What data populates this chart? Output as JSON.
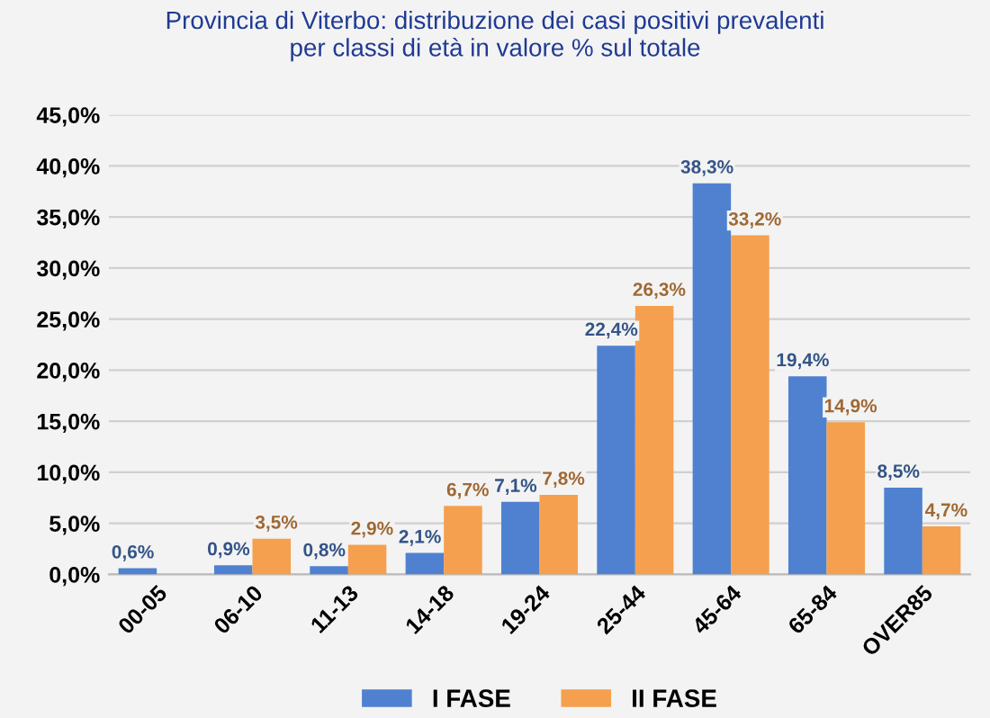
{
  "chart_data": {
    "type": "bar",
    "title": "Provincia di Viterbo: distribuzione dei casi positivi prevalenti\nper classi di età in valore % sul totale",
    "categories": [
      "00-05",
      "06-10",
      "11-13",
      "14-18",
      "19-24",
      "25-44",
      "45-64",
      "65-84",
      "OVER85"
    ],
    "series": [
      {
        "name": "I FASE",
        "color": "#4f81d0",
        "values": [
          0.6,
          0.9,
          0.8,
          2.1,
          7.1,
          22.4,
          38.3,
          19.4,
          8.5
        ],
        "value_labels": [
          "0,6%",
          "0,9%",
          "0,8%",
          "2,1%",
          "7,1%",
          "22,4%",
          "38,3%",
          "19,4%",
          "8,5%"
        ]
      },
      {
        "name": "II FASE",
        "color": "#f5a04f",
        "values": [
          null,
          3.5,
          2.9,
          6.7,
          7.8,
          26.3,
          33.2,
          14.9,
          4.7
        ],
        "value_labels": [
          null,
          "3,5%",
          "2,9%",
          "6,7%",
          "7,8%",
          "26,3%",
          "33,2%",
          "14,9%",
          "4,7%"
        ]
      }
    ],
    "ylim": [
      0,
      45
    ],
    "yticks": [
      {
        "value": 0,
        "label": "0,0%"
      },
      {
        "value": 5,
        "label": "5,0%"
      },
      {
        "value": 10,
        "label": "10,0%"
      },
      {
        "value": 15,
        "label": "15,0%"
      },
      {
        "value": 20,
        "label": "20,0%"
      },
      {
        "value": 25,
        "label": "25,0%"
      },
      {
        "value": 30,
        "label": "30,0%"
      },
      {
        "value": 35,
        "label": "35,0%"
      },
      {
        "value": 40,
        "label": "40,0%"
      },
      {
        "value": 45,
        "label": "45,0%"
      }
    ],
    "grid": "y",
    "legend": "bottom"
  }
}
